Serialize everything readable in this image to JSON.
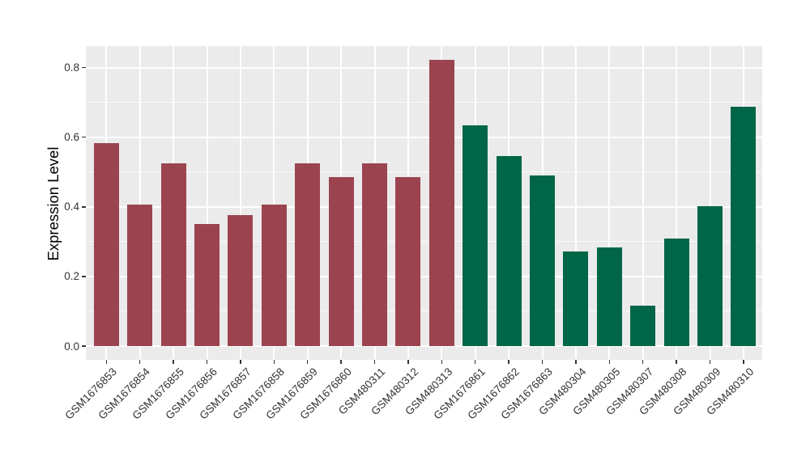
{
  "chart_data": {
    "type": "bar",
    "title": "",
    "xlabel": "",
    "ylabel": "Expression Level",
    "ylim": [
      0,
      0.86
    ],
    "yticks": [
      "0.0",
      "0.2",
      "0.4",
      "0.6",
      "0.8"
    ],
    "ytick_values": [
      0.0,
      0.2,
      0.4,
      0.6,
      0.8
    ],
    "minor_ytick_values": [
      0.1,
      0.3,
      0.5,
      0.7
    ],
    "grid": "white major+minor horizontal lines, white vertical line at each category center, gray panel",
    "legend": "none",
    "categories": [
      "GSM1676853",
      "GSM1676854",
      "GSM1676855",
      "GSM1676856",
      "GSM1676857",
      "GSM1676858",
      "GSM1676859",
      "GSM1676860",
      "GSM480311",
      "GSM480312",
      "GSM480313",
      "GSM1676861",
      "GSM1676862",
      "GSM1676863",
      "GSM480304",
      "GSM480305",
      "GSM480307",
      "GSM480308",
      "GSM480309",
      "GSM480310"
    ],
    "values": [
      0.583,
      0.406,
      0.525,
      0.35,
      0.376,
      0.406,
      0.526,
      0.485,
      0.526,
      0.485,
      0.822,
      0.635,
      0.547,
      0.489,
      0.272,
      0.283,
      0.116,
      0.308,
      0.401,
      0.688
    ],
    "groups": [
      "maroon",
      "maroon",
      "maroon",
      "maroon",
      "maroon",
      "maroon",
      "maroon",
      "maroon",
      "maroon",
      "maroon",
      "maroon",
      "green",
      "green",
      "green",
      "green",
      "green",
      "green",
      "green",
      "green",
      "green"
    ],
    "group_colors": {
      "maroon": "#9B4450",
      "green": "#016647"
    }
  },
  "theme": {
    "page_bg": "#FFFFFF",
    "panel_bg": "#EBEBEB",
    "grid_major_color": "#FFFFFF",
    "grid_minor_color": "rgba(255,255,255,0.75)",
    "tick_color": "#333333",
    "axis_text_color": "#333333",
    "axis_title_color": "#000000"
  }
}
